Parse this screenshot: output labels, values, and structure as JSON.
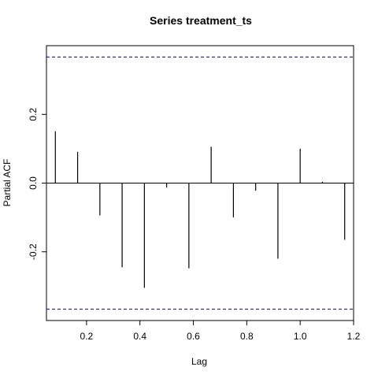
{
  "chart_data": {
    "type": "bar",
    "title": "Series  treatment_ts",
    "xlabel": "Lag",
    "ylabel": "Partial ACF",
    "xlim": [
      0.05,
      1.2
    ],
    "ylim": [
      -0.4,
      0.4
    ],
    "x_ticks": [
      0.2,
      0.4,
      0.6,
      0.8,
      1.0,
      1.2
    ],
    "x_tick_labels": [
      "0.2",
      "0.4",
      "0.6",
      "0.8",
      "1.0",
      "1.2"
    ],
    "y_ticks": [
      -0.2,
      0.0,
      0.2
    ],
    "y_tick_labels": [
      "-0.2",
      "0.0",
      "0.2"
    ],
    "lags": [
      0.0833,
      0.1667,
      0.25,
      0.3333,
      0.4167,
      0.5,
      0.5833,
      0.6667,
      0.75,
      0.8333,
      0.9167,
      1.0,
      1.0833,
      1.1667
    ],
    "values": [
      0.151,
      0.091,
      -0.094,
      -0.245,
      -0.305,
      -0.013,
      -0.248,
      0.106,
      -0.1,
      -0.022,
      -0.22,
      0.1,
      0.004,
      -0.165
    ],
    "confidence_bound": 0.367,
    "confidence_line_color": "#00008b",
    "bar_color": "#000000",
    "grid": false,
    "legend": "none"
  }
}
